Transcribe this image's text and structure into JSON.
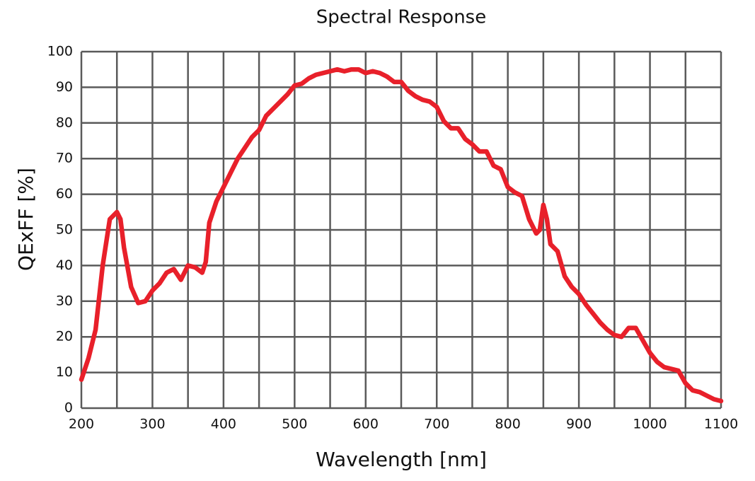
{
  "chart_data": {
    "type": "line",
    "title": "Spectral Response",
    "x_label": "Wavelength [nm]",
    "y_label": "QExFF [%]",
    "xlim": [
      200,
      1100
    ],
    "ylim": [
      0,
      100
    ],
    "xticks": [
      200,
      300,
      400,
      500,
      600,
      700,
      800,
      900,
      1000,
      1100
    ],
    "x_minor_ticks": [
      250,
      350,
      450,
      550,
      650,
      750,
      850,
      950,
      1050
    ],
    "yticks": [
      0,
      10,
      20,
      30,
      40,
      50,
      60,
      70,
      80,
      90,
      100
    ],
    "grid": true,
    "series": [
      {
        "name": "QExFF",
        "color": "#e8202a",
        "x": [
          200,
          210,
          220,
          230,
          240,
          250,
          255,
          260,
          270,
          280,
          290,
          300,
          310,
          320,
          330,
          340,
          350,
          360,
          370,
          375,
          380,
          390,
          400,
          410,
          420,
          430,
          440,
          450,
          460,
          470,
          480,
          490,
          500,
          510,
          520,
          530,
          540,
          550,
          560,
          570,
          580,
          590,
          600,
          610,
          620,
          630,
          640,
          650,
          660,
          670,
          680,
          690,
          700,
          710,
          720,
          730,
          740,
          750,
          760,
          770,
          780,
          790,
          800,
          810,
          820,
          830,
          840,
          845,
          850,
          855,
          860,
          870,
          880,
          890,
          900,
          910,
          920,
          930,
          940,
          950,
          960,
          970,
          980,
          990,
          1000,
          1010,
          1020,
          1030,
          1040,
          1050,
          1060,
          1070,
          1080,
          1090,
          1100
        ],
        "values": [
          8,
          14,
          22,
          40,
          53,
          55,
          53,
          45,
          34,
          29.5,
          30,
          33,
          35,
          38,
          39,
          36,
          40,
          39.5,
          38,
          41,
          52,
          58,
          62,
          66,
          70,
          73,
          76,
          78,
          82,
          84,
          86,
          88,
          90.5,
          91,
          92.5,
          93.5,
          94,
          94.5,
          95,
          94.5,
          95,
          95,
          94,
          94.5,
          94,
          93,
          91.5,
          91.5,
          89,
          87.5,
          86.5,
          86,
          84.5,
          80.5,
          78.5,
          78.5,
          75.5,
          74,
          72,
          72,
          68,
          67,
          62,
          60.5,
          59.5,
          53,
          49,
          50,
          57,
          53,
          46,
          44,
          37,
          34,
          32,
          29,
          26.5,
          24,
          22,
          20.5,
          20,
          22.5,
          22.5,
          19,
          15.5,
          13,
          11.5,
          11,
          10.5,
          7,
          5,
          4.5,
          3.5,
          2.5,
          2
        ]
      }
    ]
  }
}
